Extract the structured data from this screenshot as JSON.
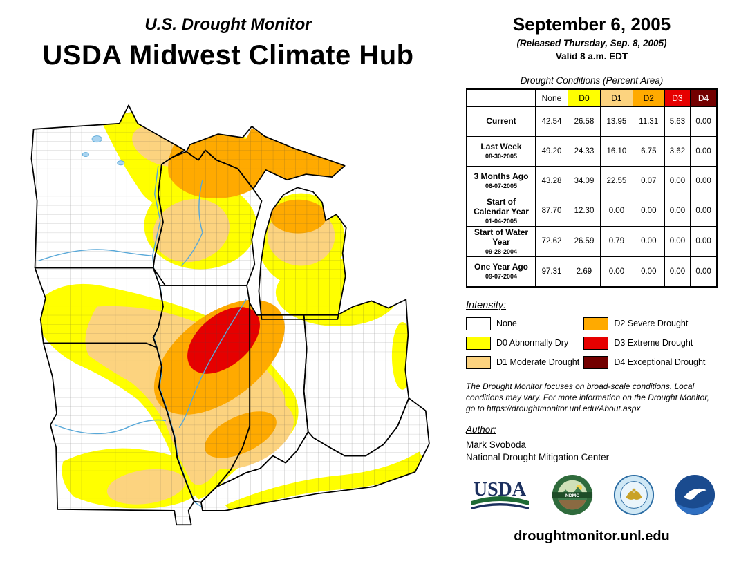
{
  "title": {
    "line1": "U.S. Drought Monitor",
    "line2": "USDA Midwest Climate Hub"
  },
  "date_block": {
    "date": "September 6, 2005",
    "released": "(Released Thursday, Sep. 8, 2005)",
    "valid": "Valid 8 a.m. EDT"
  },
  "table": {
    "title": "Drought Conditions (Percent Area)",
    "columns": [
      "None",
      "D0",
      "D1",
      "D2",
      "D3",
      "D4"
    ],
    "column_colors": [
      "#ffffff",
      "#ffff00",
      "#fcd37f",
      "#ffaa00",
      "#e60000",
      "#730000"
    ],
    "column_text_colors": [
      "#000000",
      "#000000",
      "#000000",
      "#000000",
      "#ffffff",
      "#ffffff"
    ],
    "rows": [
      {
        "label": "Current",
        "sublabel": "",
        "values": [
          "42.54",
          "26.58",
          "13.95",
          "11.31",
          "5.63",
          "0.00"
        ]
      },
      {
        "label": "Last Week",
        "sublabel": "08-30-2005",
        "values": [
          "49.20",
          "24.33",
          "16.10",
          "6.75",
          "3.62",
          "0.00"
        ]
      },
      {
        "label": "3 Months Ago",
        "sublabel": "06-07-2005",
        "values": [
          "43.28",
          "34.09",
          "22.55",
          "0.07",
          "0.00",
          "0.00"
        ]
      },
      {
        "label": "Start of Calendar Year",
        "sublabel": "01-04-2005",
        "values": [
          "87.70",
          "12.30",
          "0.00",
          "0.00",
          "0.00",
          "0.00"
        ]
      },
      {
        "label": "Start of Water Year",
        "sublabel": "09-28-2004",
        "values": [
          "72.62",
          "26.59",
          "0.79",
          "0.00",
          "0.00",
          "0.00"
        ]
      },
      {
        "label": "One Year Ago",
        "sublabel": "09-07-2004",
        "values": [
          "97.31",
          "2.69",
          "0.00",
          "0.00",
          "0.00",
          "0.00"
        ]
      }
    ]
  },
  "legend": {
    "title": "Intensity:",
    "items": [
      {
        "label": "None",
        "color": "#ffffff"
      },
      {
        "label": "D0 Abnormally Dry",
        "color": "#ffff00"
      },
      {
        "label": "D1 Moderate Drought",
        "color": "#fcd37f"
      },
      {
        "label": "D2 Severe Drought",
        "color": "#ffaa00"
      },
      {
        "label": "D3 Extreme Drought",
        "color": "#e60000"
      },
      {
        "label": "D4 Exceptional Drought",
        "color": "#730000"
      }
    ]
  },
  "disclaimer": "The Drought Monitor focuses on broad-scale conditions. Local conditions may vary. For more information on the Drought Monitor, go to https://droughtmonitor.unl.edu/About.aspx",
  "author": {
    "heading": "Author:",
    "name": "Mark Svoboda",
    "org": "National Drought Mitigation Center"
  },
  "logos": {
    "usda_label": "USDA",
    "ndmc_label": "NDMC"
  },
  "footer": {
    "url": "droughtmonitor.unl.edu"
  },
  "map": {
    "region": "Midwest",
    "states_shown": [
      "Minnesota",
      "Wisconsin",
      "Michigan",
      "Iowa",
      "Missouri",
      "Illinois",
      "Indiana",
      "Ohio",
      "Kentucky"
    ],
    "water_color": "#58a8d8"
  }
}
